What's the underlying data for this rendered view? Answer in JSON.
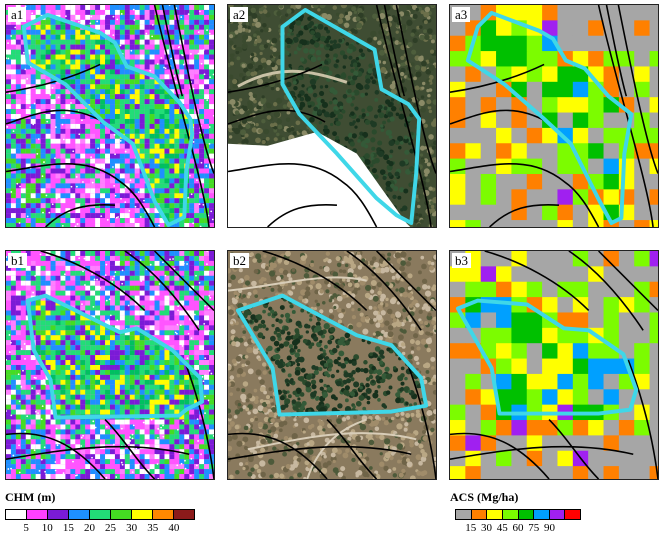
{
  "panels": [
    {
      "id": "a1",
      "label": "a1",
      "kind": "chm"
    },
    {
      "id": "a2",
      "label": "a2",
      "kind": "photo"
    },
    {
      "id": "a3",
      "label": "a3",
      "kind": "acs"
    },
    {
      "id": "b1",
      "label": "b1",
      "kind": "chm"
    },
    {
      "id": "b2",
      "label": "b2",
      "kind": "photo"
    },
    {
      "id": "b3",
      "label": "b3",
      "kind": "acs"
    }
  ],
  "legend_chm": {
    "title": "CHM (m)",
    "colors": [
      "#ffffff",
      "#ff40ff",
      "#7a1bd6",
      "#1e90ff",
      "#22dd77",
      "#44dd22",
      "#ffff00",
      "#ff8800",
      "#8b1a1a"
    ],
    "ticks": [
      "5",
      "10",
      "15",
      "20",
      "25",
      "30",
      "35",
      "40"
    ]
  },
  "legend_acs": {
    "title": "ACS (Mg/ha)",
    "colors": [
      "#a6a6a6",
      "#ff8000",
      "#ffff00",
      "#7cfc00",
      "#00c000",
      "#00a0ff",
      "#a020f0",
      "#ff0000"
    ],
    "ticks": [
      "15",
      "30",
      "45",
      "60",
      "75",
      "90"
    ]
  },
  "colors": {
    "boundary": "#3fd7e8",
    "roads": "#000000"
  }
}
